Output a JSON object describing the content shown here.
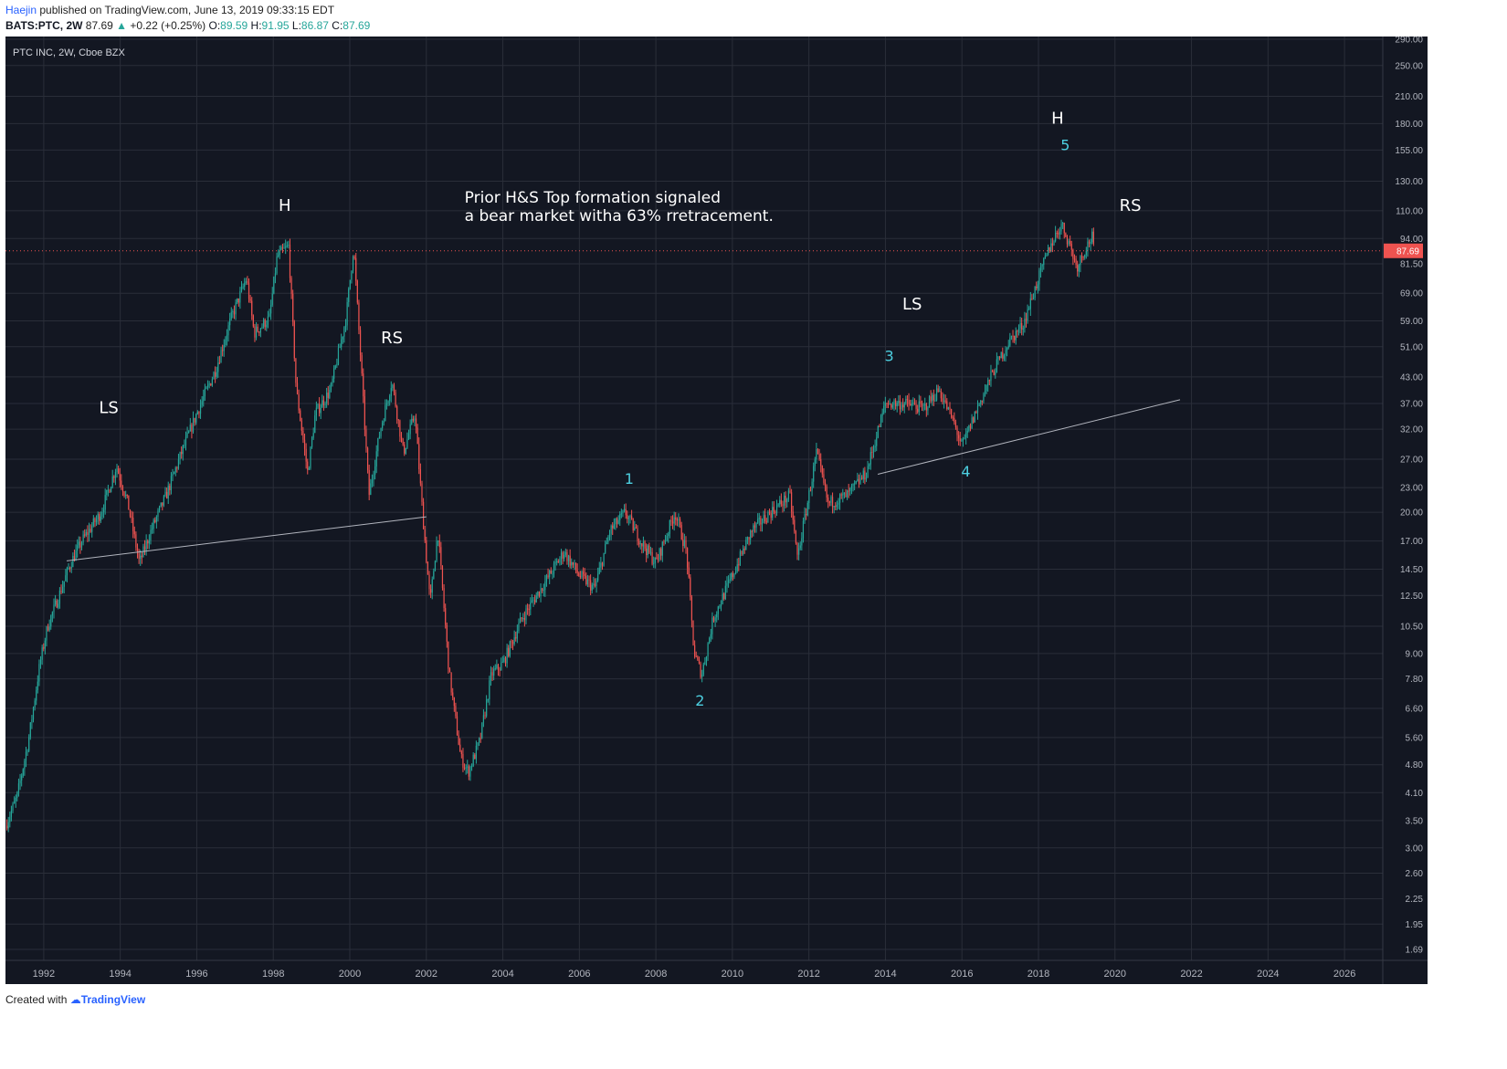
{
  "header": {
    "author": "Haejin",
    "published_text": "published on TradingView.com, June 13, 2019 09:33:15 EDT",
    "symbol": "BATS:PTC, 2W",
    "last": "87.69",
    "change_arrow": "▲",
    "change": "+0.22 (+0.25%)",
    "open_label": "O:",
    "open": "89.59",
    "high_label": "H:",
    "high": "91.95",
    "low_label": "L:",
    "low": "86.87",
    "close_label": "C:",
    "close": "87.69"
  },
  "footer": {
    "created_with": "Created with",
    "brand": "TradingView"
  },
  "colors": {
    "background": "#131722",
    "grid": "#2a2e39",
    "up": "#26a69a",
    "down": "#ef5350",
    "annotation_cyan": "#4dd0e1",
    "trendline": "#b2b5be"
  },
  "chart_data": {
    "type": "candlestick",
    "title": "PTC INC, 2W, Cboe BZX",
    "y_scale": "log",
    "ylim": [
      1.5,
      300
    ],
    "xlim": [
      1991.0,
      2027.0
    ],
    "y_ticks": [
      "290.00",
      "250.00",
      "210.00",
      "180.00",
      "155.00",
      "130.00",
      "110.00",
      "94.00",
      "81.50",
      "69.00",
      "59.00",
      "51.00",
      "43.00",
      "37.00",
      "32.00",
      "27.00",
      "23.00",
      "20.00",
      "17.00",
      "14.50",
      "12.50",
      "10.50",
      "9.00",
      "7.80",
      "6.60",
      "5.60",
      "4.80",
      "4.10",
      "3.50",
      "3.00",
      "2.60",
      "2.25",
      "1.95",
      "1.69"
    ],
    "x_ticks": [
      "1992",
      "1994",
      "1996",
      "1998",
      "2000",
      "2002",
      "2004",
      "2006",
      "2008",
      "2010",
      "2012",
      "2014",
      "2016",
      "2018",
      "2020",
      "2022",
      "2024",
      "2026"
    ],
    "last_price_label": "87.69",
    "price_path": [
      [
        1991.0,
        3.4
      ],
      [
        1991.3,
        4.0
      ],
      [
        1991.6,
        5.5
      ],
      [
        1991.9,
        8.5
      ],
      [
        1992.1,
        10.5
      ],
      [
        1992.4,
        12.5
      ],
      [
        1992.7,
        15.0
      ],
      [
        1993.0,
        17.0
      ],
      [
        1993.5,
        20.0
      ],
      [
        1993.9,
        26.0
      ],
      [
        1994.2,
        21.0
      ],
      [
        1994.5,
        15.0
      ],
      [
        1994.8,
        18.0
      ],
      [
        1995.2,
        22.0
      ],
      [
        1995.6,
        28.0
      ],
      [
        1996.0,
        35.0
      ],
      [
        1996.5,
        45.0
      ],
      [
        1996.9,
        60.0
      ],
      [
        1997.3,
        75.0
      ],
      [
        1997.5,
        55.0
      ],
      [
        1997.9,
        60.0
      ],
      [
        1998.1,
        85.0
      ],
      [
        1998.4,
        90.0
      ],
      [
        1998.6,
        40.0
      ],
      [
        1998.9,
        25.0
      ],
      [
        1999.1,
        35.0
      ],
      [
        1999.5,
        40.0
      ],
      [
        1999.9,
        60.0
      ],
      [
        2000.1,
        90.0
      ],
      [
        2000.3,
        45.0
      ],
      [
        2000.5,
        22.0
      ],
      [
        2000.8,
        32.0
      ],
      [
        2001.1,
        42.0
      ],
      [
        2001.4,
        28.0
      ],
      [
        2001.7,
        35.0
      ],
      [
        2001.9,
        20.0
      ],
      [
        2002.1,
        12.0
      ],
      [
        2002.3,
        18.0
      ],
      [
        2002.6,
        8.0
      ],
      [
        2002.9,
        5.0
      ],
      [
        2003.1,
        4.6
      ],
      [
        2003.4,
        5.5
      ],
      [
        2003.7,
        8.0
      ],
      [
        2004.0,
        8.5
      ],
      [
        2004.5,
        11.0
      ],
      [
        2005.0,
        13.0
      ],
      [
        2005.6,
        16.0
      ],
      [
        2006.0,
        14.0
      ],
      [
        2006.4,
        13.0
      ],
      [
        2006.8,
        18.0
      ],
      [
        2007.2,
        20.0
      ],
      [
        2007.6,
        17.0
      ],
      [
        2008.0,
        15.0
      ],
      [
        2008.5,
        20.0
      ],
      [
        2008.8,
        16.0
      ],
      [
        2009.0,
        9.0
      ],
      [
        2009.2,
        8.0
      ],
      [
        2009.5,
        11.0
      ],
      [
        2010.0,
        14.0
      ],
      [
        2010.5,
        18.0
      ],
      [
        2011.0,
        20.0
      ],
      [
        2011.5,
        22.0
      ],
      [
        2011.7,
        15.5
      ],
      [
        2012.0,
        22.0
      ],
      [
        2012.2,
        28.0
      ],
      [
        2012.5,
        21.0
      ],
      [
        2013.0,
        22.0
      ],
      [
        2013.5,
        25.0
      ],
      [
        2014.0,
        37.0
      ],
      [
        2014.5,
        37.0
      ],
      [
        2015.0,
        36.0
      ],
      [
        2015.4,
        40.0
      ],
      [
        2015.8,
        33.0
      ],
      [
        2016.0,
        29.0
      ],
      [
        2016.4,
        36.0
      ],
      [
        2016.8,
        44.0
      ],
      [
        2017.2,
        52.0
      ],
      [
        2017.6,
        58.0
      ],
      [
        2018.0,
        75.0
      ],
      [
        2018.3,
        90.0
      ],
      [
        2018.6,
        102.0
      ],
      [
        2018.8,
        92.0
      ],
      [
        2019.0,
        80.0
      ],
      [
        2019.2,
        88.0
      ],
      [
        2019.4,
        95.0
      ],
      [
        2019.45,
        87.69
      ]
    ],
    "trendlines": [
      {
        "from": [
          1992.6,
          15.2
        ],
        "to": [
          2002.0,
          19.5
        ]
      },
      {
        "from": [
          2013.8,
          24.8
        ],
        "to": [
          2021.7,
          37.8
        ]
      }
    ],
    "annotations": [
      {
        "text": "LS",
        "x": 1993.7,
        "y": 35.0,
        "style": "white"
      },
      {
        "text": "H",
        "x": 1998.3,
        "y": 110.0,
        "style": "white"
      },
      {
        "text": "RS",
        "x": 2001.1,
        "y": 52.0,
        "style": "white"
      },
      {
        "text": "LS",
        "x": 2014.7,
        "y": 63.0,
        "style": "white"
      },
      {
        "text": "H",
        "x": 2018.5,
        "y": 180.0,
        "style": "white"
      },
      {
        "text": "RS",
        "x": 2020.4,
        "y": 110.0,
        "style": "white"
      },
      {
        "text": "1",
        "x": 2007.3,
        "y": 23.5,
        "style": "cyan"
      },
      {
        "text": "2",
        "x": 2009.15,
        "y": 6.7,
        "style": "cyan"
      },
      {
        "text": "3",
        "x": 2014.1,
        "y": 47.0,
        "style": "cyan"
      },
      {
        "text": "4",
        "x": 2016.1,
        "y": 24.5,
        "style": "cyan"
      },
      {
        "text": "5",
        "x": 2018.7,
        "y": 155.0,
        "style": "cyan"
      }
    ],
    "note_lines": [
      "Prior H&S Top formation signaled",
      "a bear market witha 63% rretracement."
    ],
    "note_anchor": {
      "x": 2003.0,
      "y": 115.0
    }
  }
}
